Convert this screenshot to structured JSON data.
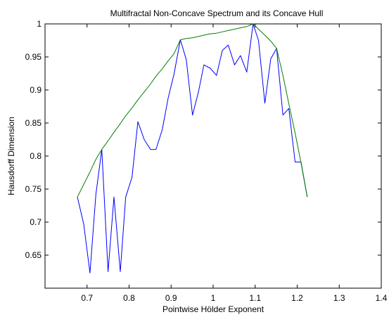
{
  "chart_data": {
    "type": "line",
    "title": "Multifractal Non-Concave Spectrum and its Concave Hull",
    "xlabel": "Pointwise Hölder Exponent",
    "ylabel": "Hausdorff Dimension",
    "xlim": [
      0.6,
      1.4
    ],
    "ylim": [
      0.6,
      1.0
    ],
    "xticks": [
      0.7,
      0.8,
      0.9,
      1.0,
      1.1,
      1.2,
      1.3,
      1.4
    ],
    "xtick_labels": [
      "0.7",
      "0.8",
      "0.9",
      "1",
      "1.1",
      "1.2",
      "1.3",
      "1.4"
    ],
    "yticks": [
      0.65,
      0.7,
      0.75,
      0.8,
      0.85,
      0.9,
      0.95,
      1.0
    ],
    "ytick_labels": [
      "0.65",
      "0.7",
      "0.75",
      "0.8",
      "0.85",
      "0.9",
      "0.95",
      "1"
    ],
    "grid": false,
    "series": [
      {
        "color": "#0000ff",
        "x": [
          0.677,
          0.692,
          0.707,
          0.721,
          0.735,
          0.75,
          0.764,
          0.779,
          0.792,
          0.807,
          0.821,
          0.836,
          0.851,
          0.864,
          0.879,
          0.893,
          0.907,
          0.922,
          0.936,
          0.951,
          0.965,
          0.978,
          0.993,
          1.008,
          1.022,
          1.036,
          1.051,
          1.065,
          1.08,
          1.095,
          1.108,
          1.123,
          1.137,
          1.151,
          1.166,
          1.18,
          1.195,
          1.209,
          1.224
        ],
        "y": [
          0.738,
          0.697,
          0.623,
          0.742,
          0.81,
          0.625,
          0.738,
          0.625,
          0.738,
          0.768,
          0.852,
          0.825,
          0.81,
          0.81,
          0.84,
          0.888,
          0.924,
          0.976,
          0.946,
          0.862,
          0.897,
          0.938,
          0.933,
          0.922,
          0.96,
          0.968,
          0.938,
          0.952,
          0.927,
          1.0,
          0.975,
          0.88,
          0.947,
          0.963,
          0.862,
          0.872,
          0.791,
          0.791,
          0.738
        ]
      },
      {
        "color": "#008000",
        "x": [
          0.677,
          0.692,
          0.707,
          0.721,
          0.735,
          0.75,
          0.764,
          0.779,
          0.792,
          0.807,
          0.821,
          0.836,
          0.851,
          0.864,
          0.879,
          0.893,
          0.907,
          0.922,
          0.936,
          0.951,
          0.965,
          0.978,
          0.993,
          1.008,
          1.022,
          1.036,
          1.051,
          1.065,
          1.08,
          1.095,
          1.108,
          1.123,
          1.137,
          1.151,
          1.166,
          1.18,
          1.195,
          1.209,
          1.224
        ],
        "y": [
          0.738,
          0.757,
          0.776,
          0.795,
          0.81,
          0.823,
          0.836,
          0.849,
          0.861,
          0.873,
          0.885,
          0.897,
          0.909,
          0.921,
          0.932,
          0.944,
          0.955,
          0.976,
          0.978,
          0.979,
          0.981,
          0.983,
          0.985,
          0.986,
          0.988,
          0.99,
          0.992,
          0.994,
          0.996,
          1.0,
          0.992,
          0.983,
          0.974,
          0.963,
          0.922,
          0.879,
          0.835,
          0.79,
          0.738
        ]
      }
    ]
  }
}
